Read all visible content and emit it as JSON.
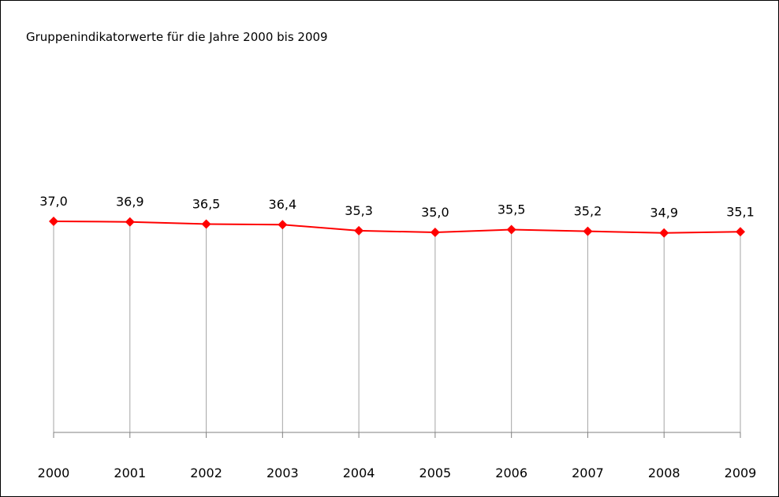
{
  "chart_data": {
    "type": "line",
    "title": "Gruppenindikatorwerte für die Jahre 2000 bis 2009",
    "xlabel": "",
    "ylabel": "",
    "categories": [
      "2000",
      "2001",
      "2002",
      "2003",
      "2004",
      "2005",
      "2006",
      "2007",
      "2008",
      "2009"
    ],
    "series": [
      {
        "values": [
          37.0,
          36.9,
          36.5,
          36.4,
          35.3,
          35.0,
          35.5,
          35.2,
          34.9,
          35.1
        ],
        "labels": [
          "37,0",
          "36,9",
          "36,5",
          "36,4",
          "35,3",
          "35,0",
          "35,5",
          "35,2",
          "34,9",
          "35,1"
        ],
        "color": "#ff0000",
        "marker": "diamond"
      }
    ],
    "drop_line_color": "#a6a6a6",
    "axis_color": "#808080",
    "grid": false,
    "legend": "none"
  }
}
